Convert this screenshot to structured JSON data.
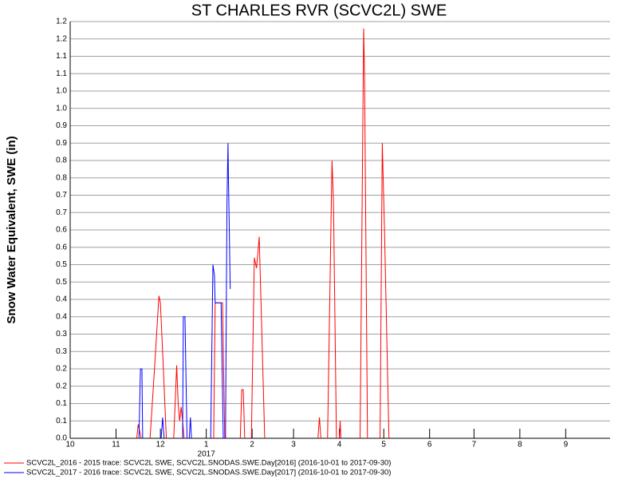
{
  "chart_data": {
    "type": "line",
    "title": "ST CHARLES RVR (SCVC2L) SWE",
    "y_label": "Snow Water Equivalent, SWE (in)",
    "xlim": [
      0,
      365
    ],
    "xticks": [
      {
        "value": 0,
        "label": "10"
      },
      {
        "value": 31,
        "label": "11"
      },
      {
        "value": 61,
        "label": "12"
      },
      {
        "value": 92,
        "label": "1"
      },
      {
        "value": 123,
        "label": "2"
      },
      {
        "value": 151,
        "label": "3"
      },
      {
        "value": 182,
        "label": "4"
      },
      {
        "value": 212,
        "label": "5"
      },
      {
        "value": 243,
        "label": "6"
      },
      {
        "value": 273,
        "label": "7"
      },
      {
        "value": 304,
        "label": "8"
      },
      {
        "value": 335,
        "label": "9"
      }
    ],
    "x_sublabel": {
      "value": 92,
      "label": "2017"
    },
    "ylim": [
      0,
      1.2
    ],
    "yticks": [
      {
        "value": 0,
        "label": "0.0"
      },
      {
        "value": 0.05,
        "label": "0.1"
      },
      0.1,
      {
        "value": 0.15,
        "label": "0.2"
      },
      0.2,
      {
        "value": 0.25,
        "label": "0.3"
      },
      0.3,
      {
        "value": 0.35,
        "label": "0.4"
      },
      0.4,
      {
        "value": 0.45,
        "label": "0.5"
      },
      0.5,
      {
        "value": 0.55,
        "label": "0.6"
      },
      0.6,
      {
        "value": 0.65,
        "label": "0.7"
      },
      0.7,
      {
        "value": 0.75,
        "label": "0.8"
      },
      0.8,
      {
        "value": 0.85,
        "label": "0.9"
      },
      0.9,
      {
        "value": 0.95,
        "label": "1.0"
      },
      {
        "value": 1.0,
        "label": "1.0"
      },
      {
        "value": 1.05,
        "label": "1.1"
      },
      1.1,
      {
        "value": 1.15,
        "label": "1.2"
      },
      1.2
    ],
    "grid": true,
    "series": [
      {
        "name": "SCVC2L_2016 - 2015 trace: SCVC2L SWE, SCVC2L.SNODAS.SWE.Day[2016] (2016-10-01 to 2017-09-30)",
        "color": "#ff0000",
        "x": [
          45,
          46,
          48,
          null,
          54,
          57,
          60,
          61,
          63,
          65,
          null,
          70,
          72,
          73,
          74,
          75,
          76,
          77,
          null,
          97,
          98,
          103,
          104.5,
          null,
          115,
          116,
          117,
          118,
          null,
          122.5,
          124.5,
          126,
          127.8,
          131.5,
          null,
          167.5,
          168.5,
          169.5,
          null,
          174,
          177,
          178,
          180,
          null,
          182,
          182.5,
          183,
          null,
          196,
          198.4,
          199,
          201,
          null,
          209.5,
          211,
          212.5,
          215.5
        ],
        "values": [
          0,
          0.04,
          0,
          null,
          0,
          0.2,
          0.41,
          0.39,
          0.2,
          0,
          null,
          0,
          0.21,
          0.1,
          0.05,
          0.09,
          0.05,
          0,
          null,
          0,
          0.39,
          0.39,
          0,
          null,
          0,
          0.14,
          0.14,
          0,
          null,
          0,
          0.52,
          0.49,
          0.58,
          0,
          null,
          0,
          0.06,
          0,
          null,
          0,
          0.8,
          0.68,
          0,
          null,
          0,
          0.05,
          0,
          null,
          0,
          1.18,
          1.05,
          0,
          null,
          0,
          0.85,
          0.6,
          0
        ]
      },
      {
        "name": "SCVC2L_2017 - 2016 trace: SCVC2L SWE, SCVC2L.SNODAS.SWE.Day[2017] (2016-10-01 to 2017-09-30)",
        "color": "#0000ff",
        "x": [
          46.5,
          47.5,
          48.5,
          49,
          null,
          61.5,
          62.5,
          63.5,
          null,
          76,
          76.5,
          77.6,
          79,
          null,
          80.5,
          81.3,
          82,
          null,
          95,
          96.5,
          97.5,
          98,
          102,
          103.5,
          null,
          105,
          106,
          106.7,
          107,
          108.2
        ],
        "values": [
          0,
          0.2,
          0.2,
          0,
          null,
          0,
          0.06,
          0,
          null,
          0,
          0.35,
          0.35,
          0,
          null,
          0,
          0.06,
          0,
          null,
          0,
          0.5,
          0.47,
          0.39,
          0.39,
          0,
          null,
          0,
          0.68,
          0.85,
          0.75,
          0.43
        ]
      }
    ]
  }
}
